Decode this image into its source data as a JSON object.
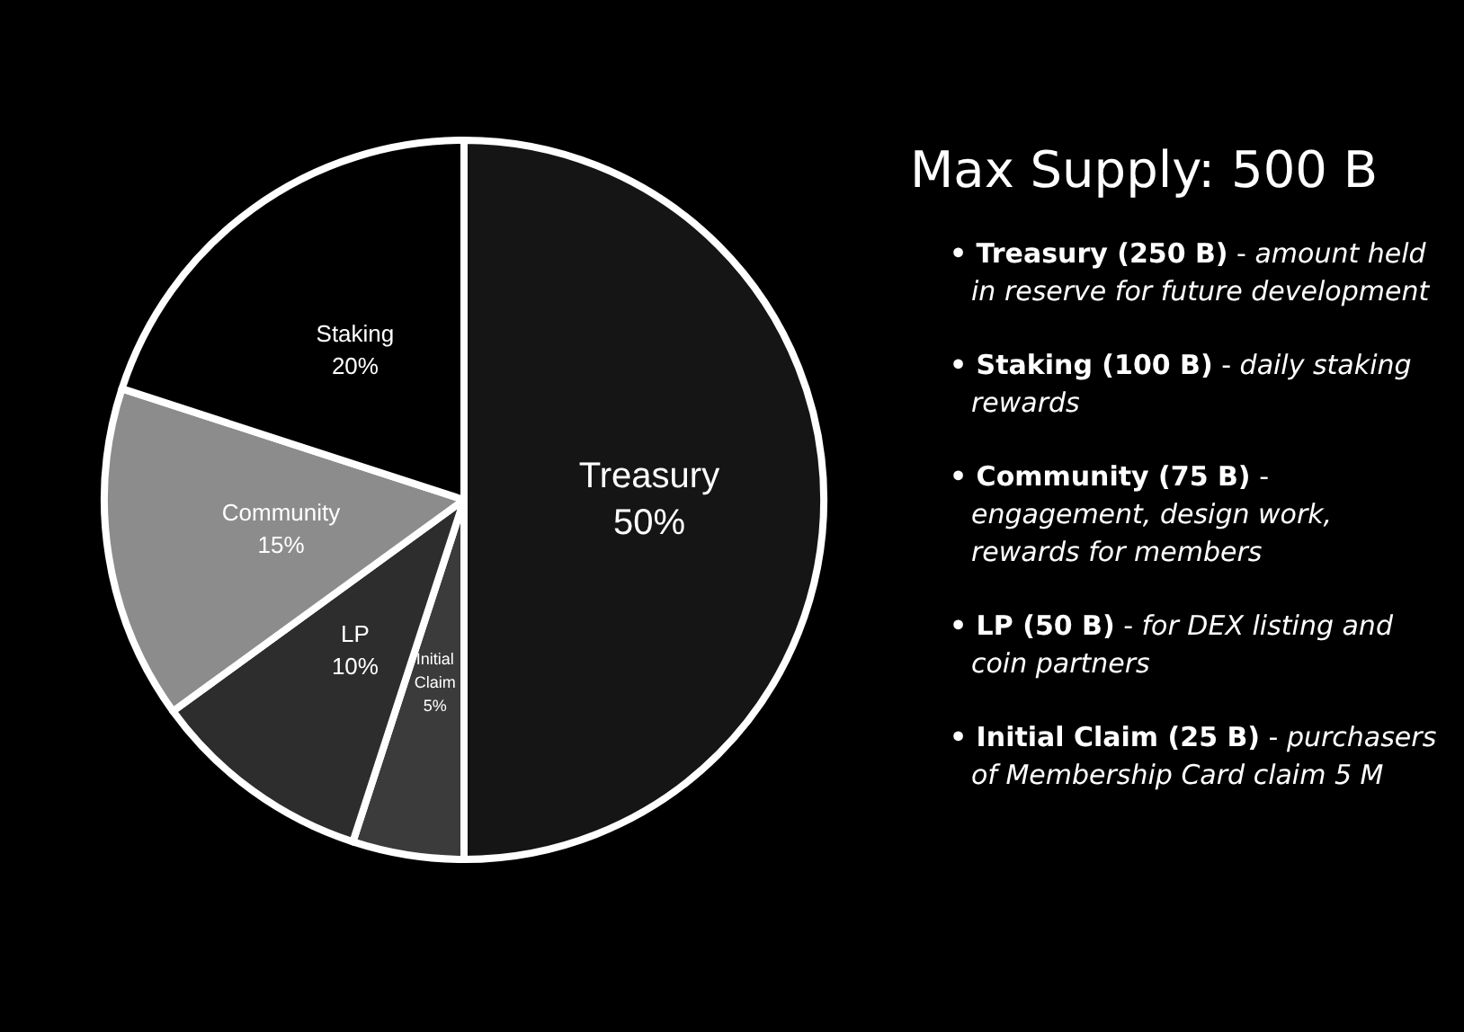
{
  "chart_data": {
    "type": "pie",
    "title": "Max Supply: 500 B",
    "categories": [
      "Treasury",
      "Initial Claim",
      "LP",
      "Community",
      "Staking"
    ],
    "values": [
      50,
      5,
      10,
      15,
      20
    ],
    "value_labels": [
      "50%",
      "5%",
      "10%",
      "15%",
      "20%"
    ],
    "colors": [
      "#151515",
      "#3b3b3b",
      "#2d2d2d",
      "#8c8c8c",
      "#000000"
    ],
    "legend": false,
    "annotations": [
      "• Treasury (250 B) - amount held in reserve for future development",
      "• Staking (100 B) - daily staking rewards",
      "• Community (75 B) - engagement, design work, rewards for members",
      "• LP (50 B) - for DEX listing and coin partners",
      "• Initial Claim (25 B) - purchasers of Membership Card claim 5 M"
    ]
  }
}
